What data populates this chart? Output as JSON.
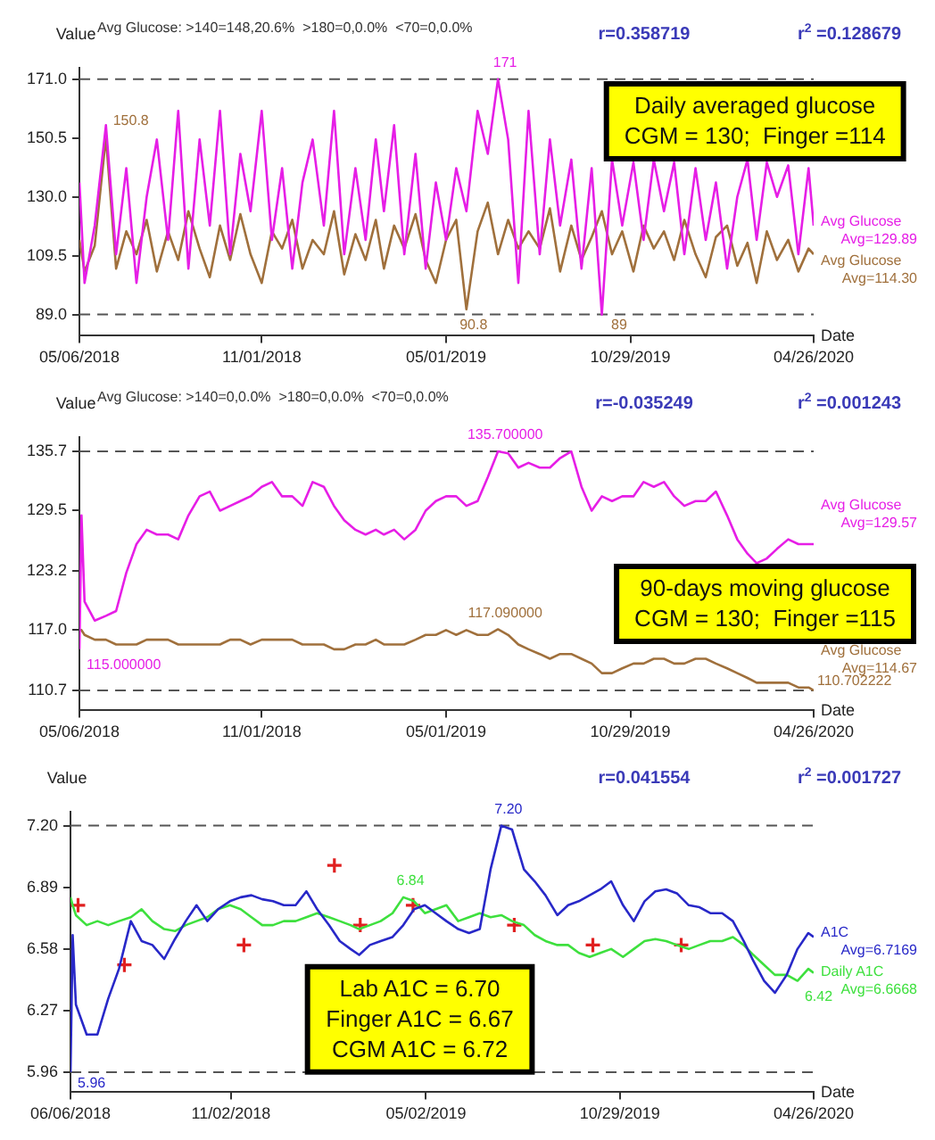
{
  "chart_data": [
    {
      "type": "line",
      "subtitle": "Avg Glucose: >140=148,20.6%  >180=0,0.0%  <70=0,0.0%",
      "xlabel": "Date",
      "ylabel": "Value",
      "grid": false,
      "legend": false,
      "marker": "none",
      "xlim": [
        "2018-05-06",
        "2020-04-26"
      ],
      "xticks": [
        {
          "value": "2018-05-06",
          "label": "05/06/2018"
        },
        {
          "value": "2018-11-01",
          "label": "11/01/2018"
        },
        {
          "value": "2019-05-01",
          "label": "05/01/2019"
        },
        {
          "value": "2019-10-29",
          "label": "10/29/2019"
        },
        {
          "value": "2020-04-26",
          "label": "04/26/2020"
        }
      ],
      "ylim": [
        81.6,
        175
      ],
      "yticks": [
        {
          "value": 89,
          "label": "89.0"
        },
        {
          "value": 109.5,
          "label": "109.5"
        },
        {
          "value": 130,
          "label": "130.0"
        },
        {
          "value": 150.5,
          "label": "150.5"
        },
        {
          "value": 171,
          "label": "171.0"
        }
      ],
      "x": [
        "2018-05-06",
        "2018-05-11",
        "2018-05-21",
        "2018-06-01",
        "2018-06-11",
        "2018-06-21",
        "2018-07-01",
        "2018-07-11",
        "2018-07-21",
        "2018-08-01",
        "2018-08-11",
        "2018-08-21",
        "2018-09-01",
        "2018-09-11",
        "2018-09-21",
        "2018-10-01",
        "2018-10-11",
        "2018-10-21",
        "2018-11-01",
        "2018-11-11",
        "2018-11-21",
        "2018-12-01",
        "2018-12-11",
        "2018-12-21",
        "2019-01-01",
        "2019-01-11",
        "2019-01-21",
        "2019-02-01",
        "2019-02-11",
        "2019-02-21",
        "2019-03-01",
        "2019-03-11",
        "2019-03-21",
        "2019-04-01",
        "2019-04-11",
        "2019-04-21",
        "2019-05-01",
        "2019-05-11",
        "2019-05-21",
        "2019-06-01",
        "2019-06-11",
        "2019-06-21",
        "2019-07-01",
        "2019-07-11",
        "2019-07-21",
        "2019-08-01",
        "2019-08-11",
        "2019-08-21",
        "2019-09-01",
        "2019-09-11",
        "2019-09-21",
        "2019-10-01",
        "2019-10-11",
        "2019-10-21",
        "2019-11-01",
        "2019-11-11",
        "2019-11-21",
        "2019-12-01",
        "2019-12-11",
        "2019-12-21",
        "2020-01-01",
        "2020-01-11",
        "2020-01-21",
        "2020-02-01",
        "2020-02-11",
        "2020-02-21",
        "2020-03-01",
        "2020-03-11",
        "2020-03-21",
        "2020-04-01",
        "2020-04-11",
        "2020-04-21",
        "2020-04-26"
      ],
      "series": [
        {
          "name": "Avg Glucose",
          "color": "#e61ee6",
          "line_style": "solid",
          "values": [
            135,
            100,
            120,
            155,
            110,
            140,
            100,
            130,
            150,
            115,
            160,
            105,
            150,
            120,
            160,
            110,
            145,
            125,
            160,
            115,
            140,
            105,
            135,
            150,
            120,
            160,
            110,
            140,
            115,
            150,
            125,
            155,
            110,
            145,
            105,
            135,
            115,
            140,
            125,
            160,
            145,
            171,
            150,
            100,
            160,
            110,
            150,
            120,
            143,
            105,
            140,
            89,
            143,
            120,
            142,
            115,
            143,
            125,
            142,
            110,
            140,
            115,
            135,
            105,
            130,
            143,
            115,
            142,
            130,
            141,
            110,
            140,
            120
          ]
        },
        {
          "name": "Avg Glucose",
          "color": "#a0703c",
          "line_style": "solid",
          "values": [
            115,
            104,
            113,
            150.8,
            105,
            118,
            110,
            122,
            104,
            118,
            108,
            125,
            112,
            102,
            120,
            108,
            124,
            110,
            100,
            118,
            112,
            122,
            105,
            115,
            110,
            125,
            103,
            117,
            108,
            122,
            105,
            120,
            112,
            124,
            108,
            100,
            115,
            122,
            90.8,
            118,
            128,
            110,
            122,
            112,
            118,
            112,
            126,
            104,
            120,
            108,
            116,
            125,
            110,
            118,
            104,
            120,
            112,
            118,
            108,
            122,
            110,
            102,
            116,
            120,
            106,
            114,
            100,
            118,
            108,
            115,
            104,
            112,
            110
          ]
        }
      ],
      "ref_lines": [
        {
          "axis": "y",
          "value": 89,
          "color": "#555555",
          "line_style": "dashed"
        },
        {
          "axis": "y",
          "value": 171,
          "color": "#555555",
          "line_style": "dashed"
        }
      ],
      "annotations": [
        "r=0.358719",
        "r$^{2}$ =0.128679",
        "Daily averaged glucose\nCGM = 130;  Finger =114",
        "Avg=129.89",
        "Avg=114.30",
        {
          "text": "171",
          "x": "2019-06-21",
          "y": 171
        },
        {
          "text": "89",
          "x": "2019-10-11",
          "y": 89
        },
        {
          "text": "150.8",
          "x": "2018-06-01",
          "y": 150.8
        },
        {
          "text": "90.8",
          "x": "2019-05-21",
          "y": 90.8
        }
      ]
    },
    {
      "type": "line",
      "subtitle": "Avg Glucose: >140=0,0.0%  >180=0,0.0%  <70=0,0.0%",
      "xlabel": "Date",
      "ylabel": "Value",
      "grid": false,
      "legend": false,
      "marker": "none",
      "xlim": [
        "2018-05-06",
        "2020-04-26"
      ],
      "xticks": [
        {
          "value": "2018-05-06",
          "label": "05/06/2018"
        },
        {
          "value": "2018-11-01",
          "label": "11/01/2018"
        },
        {
          "value": "2019-05-01",
          "label": "05/01/2019"
        },
        {
          "value": "2019-10-29",
          "label": "10/29/2019"
        },
        {
          "value": "2020-04-26",
          "label": "04/26/2020"
        }
      ],
      "ylim": [
        108.6,
        137.2
      ],
      "yticks": [
        110.7,
        {
          "value": 117,
          "label": "117.0"
        },
        123.2,
        129.5,
        135.7
      ],
      "x": [
        "2018-05-06",
        "2018-05-08",
        "2018-05-11",
        "2018-05-21",
        "2018-06-01",
        "2018-06-11",
        "2018-06-21",
        "2018-07-01",
        "2018-07-11",
        "2018-07-21",
        "2018-08-01",
        "2018-08-11",
        "2018-08-21",
        "2018-09-01",
        "2018-09-11",
        "2018-09-21",
        "2018-10-01",
        "2018-10-11",
        "2018-10-21",
        "2018-11-01",
        "2018-11-11",
        "2018-11-21",
        "2018-12-01",
        "2018-12-11",
        "2018-12-21",
        "2019-01-01",
        "2019-01-11",
        "2019-01-21",
        "2019-02-01",
        "2019-02-11",
        "2019-02-21",
        "2019-03-01",
        "2019-03-11",
        "2019-03-21",
        "2019-04-01",
        "2019-04-11",
        "2019-04-21",
        "2019-05-01",
        "2019-05-11",
        "2019-05-21",
        "2019-06-01",
        "2019-06-11",
        "2019-06-21",
        "2019-07-01",
        "2019-07-11",
        "2019-07-21",
        "2019-08-01",
        "2019-08-11",
        "2019-08-21",
        "2019-09-01",
        "2019-09-11",
        "2019-09-21",
        "2019-10-01",
        "2019-10-11",
        "2019-10-21",
        "2019-11-01",
        "2019-11-11",
        "2019-11-21",
        "2019-12-01",
        "2019-12-11",
        "2019-12-21",
        "2020-01-01",
        "2020-01-11",
        "2020-01-21",
        "2020-02-01",
        "2020-02-11",
        "2020-02-21",
        "2020-03-01",
        "2020-03-11",
        "2020-03-21",
        "2020-04-01",
        "2020-04-11",
        "2020-04-21",
        "2020-04-26"
      ],
      "series": [
        {
          "name": "Avg Glucose",
          "color": "#e61ee6",
          "line_style": "solid",
          "values": [
            115,
            129,
            120,
            118,
            118.5,
            119,
            123,
            126,
            127.5,
            127,
            127,
            126.5,
            129,
            131,
            131.5,
            129.5,
            130,
            130.5,
            131,
            132,
            132.5,
            131,
            131,
            130,
            132.5,
            132,
            130,
            128.5,
            127.5,
            127,
            127.5,
            127,
            127.5,
            126.5,
            127.5,
            129.5,
            130.5,
            131,
            131,
            130,
            130.5,
            133,
            135.7,
            135.5,
            134,
            134.5,
            134,
            134,
            135,
            135.7,
            132,
            129.5,
            131,
            130.5,
            131,
            131,
            132.5,
            132,
            132.5,
            131,
            130,
            130.5,
            130.5,
            131.5,
            129,
            126.5,
            125,
            124,
            124.5,
            125.5,
            126.5,
            126,
            126,
            126
          ]
        },
        {
          "name": "Avg Glucose",
          "color": "#a0703c",
          "line_style": "solid",
          "values": [
            117,
            117,
            116.5,
            116,
            116,
            115.5,
            115.5,
            115.5,
            116,
            116,
            116,
            115.5,
            115.5,
            115.5,
            115.5,
            115.5,
            116,
            116,
            115.5,
            116,
            116,
            116,
            116,
            115.5,
            115.5,
            115.5,
            115,
            115,
            115.5,
            115.5,
            116,
            115.5,
            115.5,
            115.5,
            116,
            116.5,
            116.5,
            117,
            116.5,
            117,
            116.5,
            116.5,
            117.09,
            116.5,
            115.5,
            115,
            114.5,
            114,
            114.5,
            114.5,
            114,
            113.5,
            112.5,
            112.5,
            113,
            113.5,
            113.5,
            114,
            114,
            113.5,
            113.5,
            114,
            114,
            113.5,
            113,
            112.5,
            112,
            111.5,
            111.5,
            111.5,
            111.5,
            111,
            111,
            110.702222
          ]
        }
      ],
      "ref_lines": [
        {
          "axis": "y",
          "value": 110.7,
          "color": "#555555",
          "line_style": "dashed"
        },
        {
          "axis": "y",
          "value": 135.7,
          "color": "#555555",
          "line_style": "dashed"
        }
      ],
      "annotations": [
        "r=-0.035249",
        "r$^{2}$ =0.001243",
        "90-days moving glucose\nCGM = 130;  Finger =115",
        "Avg=129.57",
        "Avg=114.67",
        {
          "text": "135.700000",
          "x": "2019-06-21",
          "y": 135.7
        },
        {
          "text": "117.090000",
          "x": "2019-06-21",
          "y": 117.09
        },
        {
          "text": "115.000000",
          "x": "2018-05-06",
          "y": 115
        },
        {
          "text": "110.702222",
          "x": "2020-04-26",
          "y": 110.702222
        }
      ]
    },
    {
      "type": "line",
      "xlabel": "Date",
      "ylabel": "Value",
      "grid": false,
      "legend": false,
      "marker": "none",
      "xlim": [
        "2018-06-06",
        "2020-04-26"
      ],
      "xticks": [
        {
          "value": "2018-06-06",
          "label": "06/06/2018"
        },
        {
          "value": "2018-11-02",
          "label": "11/02/2018"
        },
        {
          "value": "2019-05-02",
          "label": "05/02/2019"
        },
        {
          "value": "2019-10-29",
          "label": "10/29/2019"
        },
        {
          "value": "2020-04-26",
          "label": "04/26/2020"
        }
      ],
      "ylim": [
        5.86,
        7.27
      ],
      "yticks": [
        5.96,
        6.27,
        6.58,
        6.89,
        {
          "value": 7.2,
          "label": "7.20"
        }
      ],
      "x": [
        "2018-06-06",
        "2018-06-08",
        "2018-06-11",
        "2018-06-21",
        "2018-07-01",
        "2018-07-11",
        "2018-07-21",
        "2018-08-01",
        "2018-08-11",
        "2018-08-21",
        "2018-09-01",
        "2018-09-11",
        "2018-09-21",
        "2018-10-01",
        "2018-10-11",
        "2018-10-21",
        "2018-11-01",
        "2018-11-11",
        "2018-11-21",
        "2018-12-01",
        "2018-12-11",
        "2018-12-21",
        "2019-01-01",
        "2019-01-11",
        "2019-01-21",
        "2019-02-01",
        "2019-02-11",
        "2019-02-21",
        "2019-03-01",
        "2019-03-11",
        "2019-03-21",
        "2019-04-01",
        "2019-04-11",
        "2019-04-21",
        "2019-05-01",
        "2019-05-11",
        "2019-05-21",
        "2019-06-01",
        "2019-06-11",
        "2019-06-21",
        "2019-07-01",
        "2019-07-11",
        "2019-07-21",
        "2019-08-01",
        "2019-08-11",
        "2019-08-21",
        "2019-09-01",
        "2019-09-11",
        "2019-09-21",
        "2019-10-01",
        "2019-10-11",
        "2019-10-21",
        "2019-11-01",
        "2019-11-11",
        "2019-11-21",
        "2019-12-01",
        "2019-12-11",
        "2019-12-21",
        "2020-01-01",
        "2020-01-11",
        "2020-01-21",
        "2020-02-01",
        "2020-02-11",
        "2020-02-21",
        "2020-03-01",
        "2020-03-11",
        "2020-03-21",
        "2020-04-01",
        "2020-04-11",
        "2020-04-21",
        "2020-04-26"
      ],
      "series": [
        {
          "name": "A1C",
          "color": "#2828c8",
          "line_style": "solid",
          "values": [
            5.96,
            6.65,
            6.3,
            6.15,
            6.15,
            6.33,
            6.48,
            6.72,
            6.62,
            6.6,
            6.53,
            6.63,
            6.72,
            6.8,
            6.72,
            6.78,
            6.82,
            6.84,
            6.85,
            6.83,
            6.82,
            6.8,
            6.8,
            6.87,
            6.78,
            6.7,
            6.62,
            6.58,
            6.55,
            6.6,
            6.62,
            6.64,
            6.7,
            6.78,
            6.8,
            6.76,
            6.72,
            6.68,
            6.66,
            6.68,
            6.98,
            7.2,
            7.18,
            6.98,
            6.92,
            6.85,
            6.75,
            6.8,
            6.82,
            6.85,
            6.88,
            6.92,
            6.8,
            6.72,
            6.82,
            6.87,
            6.88,
            6.86,
            6.8,
            6.79,
            6.76,
            6.76,
            6.72,
            6.62,
            6.52,
            6.42,
            6.36,
            6.45,
            6.58,
            6.66,
            6.64
          ]
        },
        {
          "name": "Daily A1C",
          "color": "#3ee03e",
          "line_style": "solid",
          "values": [
            6.84,
            6.8,
            6.75,
            6.7,
            6.72,
            6.7,
            6.72,
            6.74,
            6.78,
            6.72,
            6.68,
            6.67,
            6.7,
            6.72,
            6.74,
            6.78,
            6.8,
            6.78,
            6.74,
            6.7,
            6.7,
            6.72,
            6.72,
            6.74,
            6.76,
            6.74,
            6.72,
            6.7,
            6.68,
            6.7,
            6.72,
            6.76,
            6.84,
            6.82,
            6.76,
            6.78,
            6.8,
            6.72,
            6.74,
            6.76,
            6.74,
            6.75,
            6.72,
            6.7,
            6.65,
            6.62,
            6.6,
            6.6,
            6.56,
            6.54,
            6.56,
            6.58,
            6.54,
            6.58,
            6.62,
            6.63,
            6.62,
            6.6,
            6.58,
            6.6,
            6.62,
            6.62,
            6.64,
            6.6,
            6.55,
            6.5,
            6.45,
            6.45,
            6.42,
            6.48,
            6.46
          ]
        },
        {
          "type": "scatter",
          "marker": "cross",
          "color": "#e02020",
          "x": [
            "2018-06-13",
            "2018-07-26",
            "2018-11-14",
            "2019-02-06",
            "2019-03-02",
            "2019-04-20",
            "2019-07-23",
            "2019-10-04",
            "2019-12-25"
          ],
          "values": [
            6.8,
            6.5,
            6.6,
            7.0,
            6.7,
            6.8,
            6.7,
            6.6,
            6.6
          ]
        }
      ],
      "ref_lines": [
        {
          "axis": "y",
          "value": 5.96,
          "color": "#555555",
          "line_style": "dashed"
        },
        {
          "axis": "y",
          "value": 7.2,
          "color": "#555555",
          "line_style": "dashed"
        }
      ],
      "annotations": [
        "r=0.041554",
        "r$^{2}$ =0.001727",
        "Lab A1C = 6.70\nFinger A1C = 6.67\nCGM A1C = 6.72",
        "Avg=6.7169",
        "Avg=6.6668",
        {
          "text": "7.20",
          "x": "2019-07-11",
          "y": 7.2
        },
        {
          "text": "5.96",
          "x": "2018-06-06",
          "y": 5.96
        },
        {
          "text": "6.84",
          "x": "2019-04-11",
          "y": 6.84
        },
        {
          "text": "6.42",
          "x": "2020-04-11",
          "y": 6.42
        }
      ]
    }
  ]
}
